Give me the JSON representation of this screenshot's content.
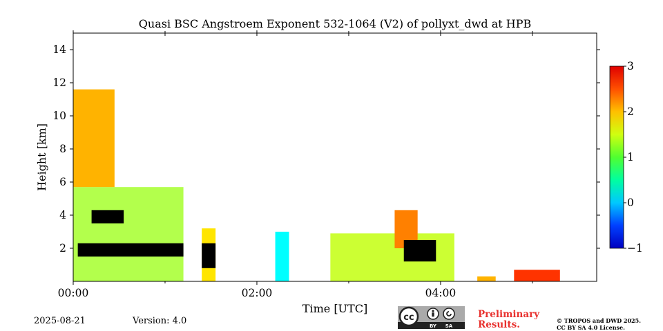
{
  "chart_data": {
    "type": "heatmap",
    "title": "Quasi BSC Angstroem Exponent 532-1064 (V2) of pollyxt_dwd at HPB",
    "xlabel": "Time [UTC]",
    "ylabel": "Height [km]",
    "x_unit": "hours UTC",
    "xlim": [
      0.0,
      5.7
    ],
    "ylim": [
      0.0,
      15.0
    ],
    "x_ticks": [
      0,
      2,
      4
    ],
    "x_tick_labels": [
      "00:00",
      "02:00",
      "04:00"
    ],
    "y_ticks": [
      2,
      4,
      6,
      8,
      10,
      12,
      14
    ],
    "y_tick_labels": [
      "2",
      "4",
      "6",
      "8",
      "10",
      "12",
      "14"
    ],
    "colorbar": {
      "range": [
        -1,
        3
      ],
      "ticks": [
        -1,
        0,
        1,
        2,
        3
      ],
      "tick_labels": [
        "−1",
        "0",
        "1",
        "2",
        "3"
      ],
      "colormap": "jet",
      "below_range_color": "#000000"
    },
    "regions": [
      {
        "t0": 0.0,
        "t1": 1.2,
        "h0": 0.0,
        "h1": 5.7,
        "value": 1.2
      },
      {
        "t0": 0.0,
        "t1": 0.45,
        "h0": 5.7,
        "h1": 11.6,
        "value": 1.8
      },
      {
        "t0": 0.05,
        "t1": 1.2,
        "h0": 1.5,
        "h1": 2.3,
        "value": -1.3
      },
      {
        "t0": 0.2,
        "t1": 0.55,
        "h0": 3.5,
        "h1": 4.3,
        "value": -1.3
      },
      {
        "t0": 1.4,
        "t1": 1.55,
        "h0": 0.0,
        "h1": 3.2,
        "value": 1.6
      },
      {
        "t0": 1.4,
        "t1": 1.55,
        "h0": 0.8,
        "h1": 2.3,
        "value": -1.3
      },
      {
        "t0": 2.2,
        "t1": 2.35,
        "h0": 0.0,
        "h1": 3.0,
        "value": 0.5
      },
      {
        "t0": 2.8,
        "t1": 4.15,
        "h0": 0.0,
        "h1": 2.9,
        "value": 1.3
      },
      {
        "t0": 3.5,
        "t1": 3.75,
        "h0": 2.0,
        "h1": 4.3,
        "value": 2.0
      },
      {
        "t0": 3.6,
        "t1": 3.95,
        "h0": 1.2,
        "h1": 2.5,
        "value": -1.3
      },
      {
        "t0": 4.4,
        "t1": 4.6,
        "h0": 0.0,
        "h1": 0.3,
        "value": 1.8
      },
      {
        "t0": 4.8,
        "t1": 5.3,
        "h0": 0.0,
        "h1": 0.7,
        "value": 2.3
      }
    ]
  },
  "footer": {
    "date": "2025-08-21",
    "version": "Version: 4.0",
    "preliminary_line1": "Preliminary",
    "preliminary_line2": "Results.",
    "license_line1": "© TROPOS and DWD 2025.",
    "license_line2": "CC BY SA 4.0 License."
  },
  "badge": {
    "cc": "cc",
    "by": "BY",
    "sa": "SA"
  },
  "colors": {
    "preliminary": "#e8302d",
    "badge_bg": "#aaaaaa",
    "badge_dark": "#222222"
  }
}
